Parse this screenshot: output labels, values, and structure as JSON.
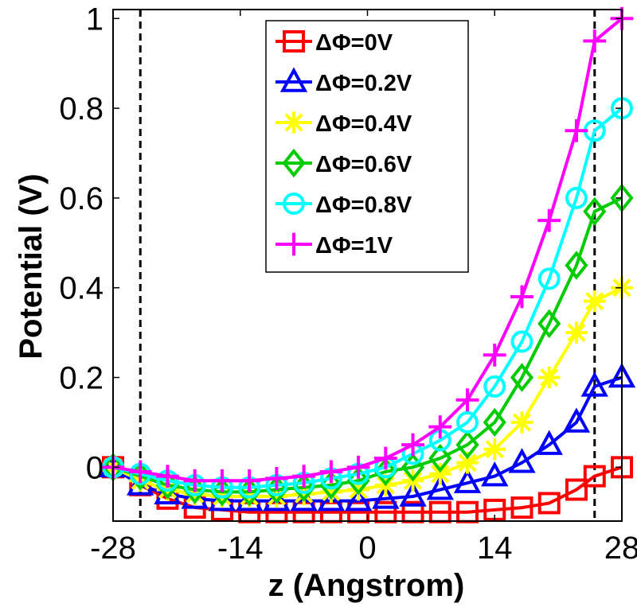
{
  "chart_data": {
    "type": "line",
    "title": "",
    "xlabel": "z (Angstrom)",
    "ylabel": "Potential (V)",
    "xlim": [
      -28,
      28
    ],
    "ylim": [
      -0.12,
      1.02
    ],
    "xticks": [
      -28,
      -14,
      0,
      14,
      28
    ],
    "xtick_labels": [
      "-28",
      "-14",
      "0",
      "14",
      "28"
    ],
    "yticks": [
      0,
      0.2,
      0.4,
      0.6,
      0.8,
      1
    ],
    "ytick_labels": [
      "0",
      "0.2",
      "0.4",
      "0.6",
      "0.8",
      "1"
    ],
    "grid": false,
    "legend_position": "top-center",
    "vertical_reference_lines": [
      -25,
      25
    ],
    "x": [
      -28,
      -25,
      -22,
      -19,
      -16,
      -13,
      -10,
      -7,
      -4,
      -1,
      2,
      5,
      8,
      11,
      14,
      17,
      20,
      23,
      25,
      28
    ],
    "series": [
      {
        "name": "ΔΦ=0V",
        "color": "#ff0000",
        "marker": "square",
        "values": [
          0.0,
          -0.04,
          -0.07,
          -0.09,
          -0.095,
          -0.1,
          -0.1,
          -0.1,
          -0.1,
          -0.1,
          -0.1,
          -0.1,
          -0.1,
          -0.1,
          -0.095,
          -0.09,
          -0.08,
          -0.05,
          -0.02,
          0.0
        ]
      },
      {
        "name": "ΔΦ=0.2V",
        "color": "#0000ff",
        "marker": "triangle",
        "values": [
          0.0,
          -0.04,
          -0.06,
          -0.07,
          -0.075,
          -0.075,
          -0.075,
          -0.075,
          -0.075,
          -0.075,
          -0.07,
          -0.065,
          -0.05,
          -0.035,
          -0.02,
          0.01,
          0.05,
          0.1,
          0.18,
          0.2
        ]
      },
      {
        "name": "ΔΦ=0.4V",
        "color": "#ffff00",
        "marker": "asterisk",
        "values": [
          0.0,
          -0.03,
          -0.05,
          -0.06,
          -0.065,
          -0.065,
          -0.065,
          -0.06,
          -0.055,
          -0.05,
          -0.04,
          -0.03,
          -0.015,
          0.01,
          0.04,
          0.1,
          0.2,
          0.3,
          0.37,
          0.4
        ]
      },
      {
        "name": "ΔΦ=0.6V",
        "color": "#00cc00",
        "marker": "diamond",
        "values": [
          0.0,
          -0.02,
          -0.04,
          -0.05,
          -0.055,
          -0.055,
          -0.05,
          -0.045,
          -0.04,
          -0.03,
          -0.01,
          0.0,
          0.02,
          0.05,
          0.1,
          0.2,
          0.32,
          0.45,
          0.57,
          0.6
        ]
      },
      {
        "name": "ΔΦ=0.8V",
        "color": "#00ffff",
        "marker": "circle",
        "values": [
          0.0,
          -0.015,
          -0.03,
          -0.04,
          -0.045,
          -0.045,
          -0.04,
          -0.035,
          -0.025,
          -0.015,
          0.0,
          0.03,
          0.06,
          0.1,
          0.18,
          0.28,
          0.42,
          0.6,
          0.75,
          0.8
        ]
      },
      {
        "name": "ΔΦ=1V",
        "color": "#ff00ff",
        "marker": "plus",
        "values": [
          0.0,
          -0.01,
          -0.02,
          -0.03,
          -0.03,
          -0.03,
          -0.025,
          -0.02,
          -0.01,
          0.0,
          0.02,
          0.05,
          0.09,
          0.15,
          0.25,
          0.38,
          0.55,
          0.75,
          0.95,
          1.0
        ]
      }
    ]
  }
}
